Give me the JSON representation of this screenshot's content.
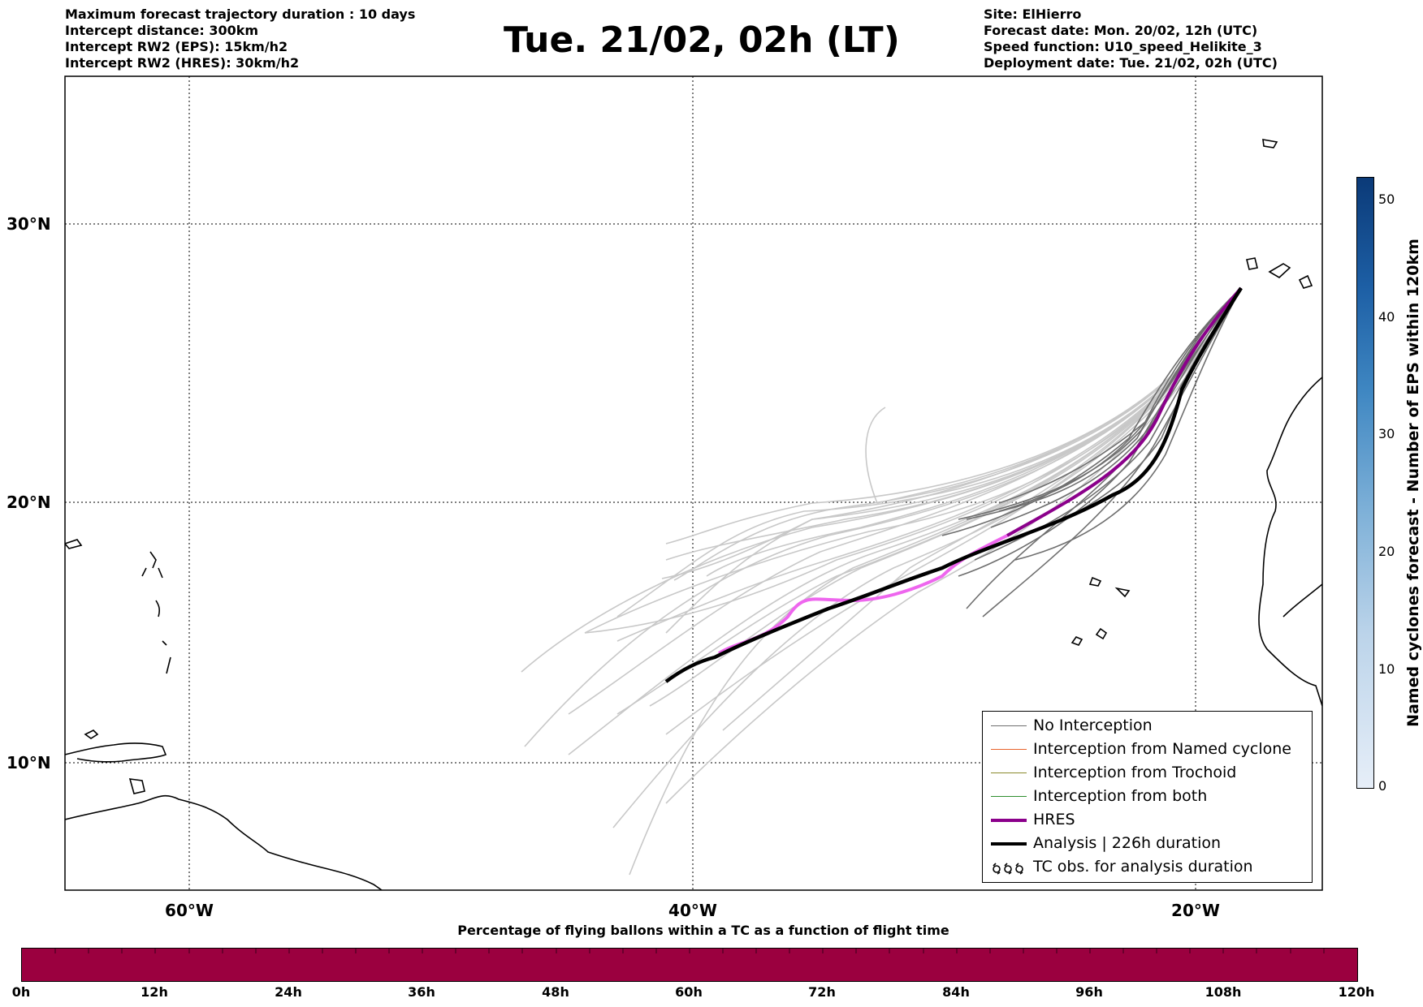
{
  "header": {
    "left_lines": [
      "Maximum forecast trajectory duration : 10 days",
      "Intercept distance: 300km",
      "Intercept RW2 (EPS):  15km/h2",
      "Intercept RW2 (HRES): 30km/h2"
    ],
    "title": "Tue. 21/02, 02h (LT)",
    "right_lines": [
      "Site: ElHierro",
      "Forecast date: Mon. 20/02, 12h (UTC)",
      "Speed function: U10_speed_Helikite_3",
      "Deployment date: Tue. 21/02, 02h (UTC)"
    ]
  },
  "map": {
    "lat_labels": [
      "30°N",
      "20°N",
      "10°N"
    ],
    "lon_labels": [
      "60°W",
      "40°W",
      "20°W"
    ],
    "colors": {
      "eps_near": "#6f6f6f",
      "eps_far": "#c8c8c8",
      "hres": "#8b008b",
      "hres_highlight": "#ee66ee",
      "analysis": "#000000",
      "coast": "#000000"
    }
  },
  "legend": {
    "items": [
      {
        "label": "No Interception",
        "color": "#6f6f6f",
        "style": "thin"
      },
      {
        "label": "Interception from Named cyclone",
        "color": "#e8622a",
        "style": "thin"
      },
      {
        "label": "Interception from Trochoid",
        "color": "#8a8a2e",
        "style": "thin"
      },
      {
        "label": "Interception from both",
        "color": "#2f8f2f",
        "style": "thin"
      },
      {
        "label": "HRES",
        "color": "#8b008b",
        "style": "thick"
      },
      {
        "label": "Analysis | 226h duration",
        "color": "#000000",
        "style": "thick"
      },
      {
        "label": "TC obs. for analysis duration",
        "color": "#000000",
        "style": "symbol"
      }
    ]
  },
  "right_colorbar": {
    "label": "Named cyclones forecast - Number of EPS within 120km",
    "ticks": [
      "0",
      "10",
      "20",
      "30",
      "40",
      "50"
    ],
    "min": 0,
    "max": 52
  },
  "bottom_colorbar": {
    "title": "Percentage of flying ballons within a TC as a function of flight time",
    "ticks": [
      "0h",
      "12h",
      "24h",
      "36h",
      "48h",
      "60h",
      "72h",
      "84h",
      "96h",
      "108h",
      "120h"
    ],
    "color": "#9b003f"
  }
}
